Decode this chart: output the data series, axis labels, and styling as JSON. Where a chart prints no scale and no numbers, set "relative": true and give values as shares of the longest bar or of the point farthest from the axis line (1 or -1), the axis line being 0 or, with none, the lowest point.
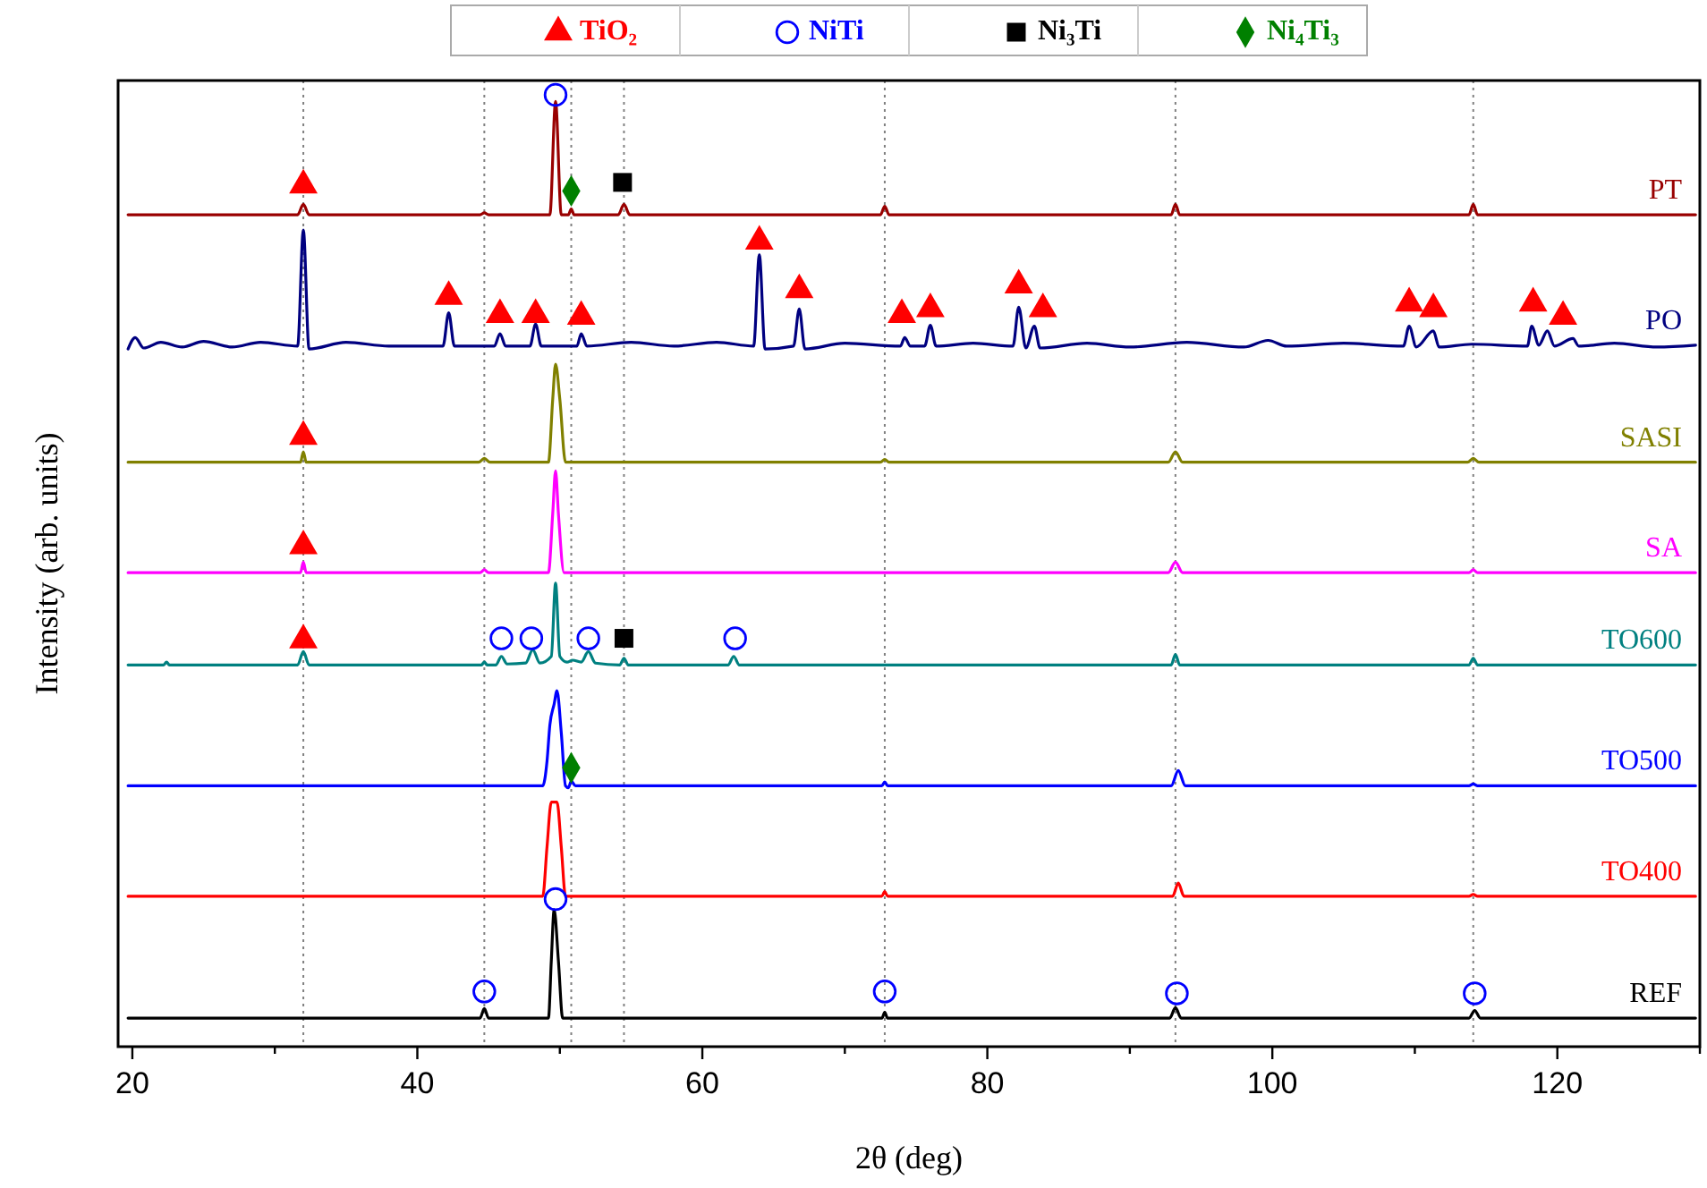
{
  "chart_data": {
    "type": "line",
    "relative": true,
    "xlabel": "2θ (deg)",
    "ylabel": "Intensity (arb. units)",
    "xlim": [
      19,
      130
    ],
    "xticks": [
      20,
      {
        "value": 30,
        "label": null
      },
      40,
      {
        "value": 50,
        "label": null
      },
      60,
      {
        "value": 70,
        "label": null
      },
      80,
      {
        "value": 90,
        "label": null
      },
      100,
      {
        "value": 110,
        "label": null
      },
      120,
      {
        "value": 130,
        "label": null
      }
    ],
    "grid": false,
    "legend": "top",
    "line_style": "solid",
    "ref_lines": [
      {
        "axis": "x",
        "value": 32.0,
        "color": "#808080",
        "line_style": "dotted"
      },
      {
        "axis": "x",
        "value": 44.7,
        "color": "#808080",
        "line_style": "dotted"
      },
      {
        "axis": "x",
        "value": 50.8,
        "color": "#808080",
        "line_style": "dotted"
      },
      {
        "axis": "x",
        "value": 54.5,
        "color": "#808080",
        "line_style": "dotted"
      },
      {
        "axis": "x",
        "value": 72.8,
        "color": "#808080",
        "line_style": "dotted"
      },
      {
        "axis": "x",
        "value": 93.2,
        "color": "#808080",
        "line_style": "dotted"
      },
      {
        "axis": "x",
        "value": 114.1,
        "color": "#808080",
        "line_style": "dotted"
      }
    ],
    "series": [
      {
        "name": "PT",
        "color": "#990000",
        "x": [
          19.7,
          31.6,
          32.0,
          32.4,
          44.4,
          44.7,
          45.0,
          49.3,
          49.7,
          50.1,
          50.6,
          50.8,
          51.0,
          54.1,
          54.5,
          54.9,
          72.5,
          72.8,
          73.1,
          92.9,
          93.2,
          93.5,
          113.8,
          114.1,
          114.4,
          129.7
        ],
        "values": [
          0.874,
          0.874,
          0.885,
          0.874,
          0.874,
          0.876,
          0.874,
          0.874,
          0.993,
          0.874,
          0.874,
          0.88,
          0.874,
          0.874,
          0.885,
          0.874,
          0.874,
          0.883,
          0.874,
          0.874,
          0.885,
          0.874,
          0.874,
          0.885,
          0.874,
          0.874
        ]
      },
      {
        "name": "PO",
        "color": "#000080",
        "x": [
          19.7,
          20.2,
          20.8,
          22.0,
          23.5,
          25,
          27,
          29,
          31.6,
          32.0,
          32.4,
          35,
          38,
          41.8,
          42.2,
          42.6,
          45.4,
          45.8,
          46.2,
          47.9,
          48.3,
          48.7,
          51.2,
          51.5,
          51.9,
          55,
          58,
          61,
          63.6,
          64.0,
          64.4,
          66.4,
          66.8,
          67.2,
          70,
          73.9,
          74.2,
          74.6,
          75.6,
          76.0,
          76.4,
          79,
          81.8,
          82.2,
          82.7,
          83.3,
          83.7,
          87,
          90,
          94,
          98,
          99.7,
          101,
          105,
          109.2,
          109.6,
          110.1,
          111.3,
          111.7,
          114,
          117.9,
          118.2,
          118.7,
          119.3,
          119.8,
          121.1,
          121.5,
          124,
          127,
          129.7
        ],
        "values": [
          0.733,
          0.745,
          0.734,
          0.74,
          0.735,
          0.741,
          0.735,
          0.74,
          0.736,
          0.858,
          0.733,
          0.74,
          0.736,
          0.736,
          0.771,
          0.736,
          0.736,
          0.749,
          0.736,
          0.736,
          0.759,
          0.736,
          0.736,
          0.749,
          0.736,
          0.74,
          0.736,
          0.74,
          0.736,
          0.832,
          0.733,
          0.736,
          0.775,
          0.733,
          0.739,
          0.736,
          0.745,
          0.736,
          0.736,
          0.758,
          0.736,
          0.739,
          0.736,
          0.777,
          0.734,
          0.757,
          0.734,
          0.739,
          0.735,
          0.74,
          0.735,
          0.742,
          0.736,
          0.739,
          0.736,
          0.757,
          0.735,
          0.752,
          0.735,
          0.738,
          0.736,
          0.757,
          0.737,
          0.752,
          0.736,
          0.744,
          0.736,
          0.739,
          0.735,
          0.737
        ]
      },
      {
        "name": "SASI",
        "color": "#808000",
        "x": [
          19.7,
          31.8,
          32.0,
          32.2,
          44.3,
          44.7,
          45.1,
          49.2,
          49.5,
          49.7,
          50.0,
          50.4,
          72.5,
          72.8,
          73.1,
          92.7,
          93.2,
          93.7,
          113.7,
          114.1,
          114.5,
          129.7
        ],
        "values": [
          0.614,
          0.614,
          0.625,
          0.614,
          0.614,
          0.618,
          0.614,
          0.614,
          0.68,
          0.717,
          0.68,
          0.614,
          0.614,
          0.617,
          0.614,
          0.614,
          0.625,
          0.614,
          0.614,
          0.618,
          0.614,
          0.614
        ]
      },
      {
        "name": "SA",
        "color": "#ff00ff",
        "x": [
          19.7,
          31.8,
          32.0,
          32.2,
          44.4,
          44.7,
          45.0,
          49.2,
          49.5,
          49.7,
          49.9,
          50.3,
          92.7,
          93.2,
          93.7,
          113.8,
          114.1,
          114.4,
          129.7
        ],
        "values": [
          0.498,
          0.498,
          0.509,
          0.498,
          0.498,
          0.501,
          0.498,
          0.498,
          0.56,
          0.605,
          0.56,
          0.498,
          0.498,
          0.509,
          0.498,
          0.498,
          0.501,
          0.498,
          0.498
        ]
      },
      {
        "name": "TO600",
        "color": "#008080",
        "x": [
          19.7,
          22.2,
          22.4,
          22.6,
          31.6,
          32.0,
          32.4,
          44.5,
          44.7,
          44.9,
          45.5,
          45.9,
          46.3,
          47.6,
          48.1,
          48.6,
          49.4,
          49.7,
          50.0,
          50.5,
          50.9,
          51.5,
          52.0,
          52.5,
          54.2,
          54.5,
          54.8,
          61.8,
          62.2,
          62.6,
          92.9,
          93.2,
          93.5,
          113.8,
          114.1,
          114.4,
          129.7
        ],
        "values": [
          0.401,
          0.401,
          0.404,
          0.401,
          0.401,
          0.415,
          0.401,
          0.401,
          0.404,
          0.401,
          0.401,
          0.41,
          0.402,
          0.403,
          0.417,
          0.403,
          0.41,
          0.487,
          0.41,
          0.404,
          0.406,
          0.404,
          0.415,
          0.403,
          0.401,
          0.408,
          0.401,
          0.401,
          0.41,
          0.401,
          0.401,
          0.412,
          0.401,
          0.401,
          0.408,
          0.401,
          0.401
        ]
      },
      {
        "name": "TO500",
        "color": "#0000ff",
        "x": [
          19.7,
          48.8,
          49.1,
          49.3,
          49.6,
          49.8,
          50.1,
          50.4,
          50.6,
          50.8,
          51.1,
          72.6,
          72.8,
          73.0,
          92.9,
          93.4,
          93.9,
          113.8,
          114.1,
          114.4,
          129.7
        ],
        "values": [
          0.274,
          0.274,
          0.3,
          0.338,
          0.36,
          0.374,
          0.33,
          0.274,
          0.272,
          0.279,
          0.274,
          0.274,
          0.278,
          0.274,
          0.274,
          0.29,
          0.274,
          0.274,
          0.276,
          0.274,
          0.274
        ]
      },
      {
        "name": "TO400",
        "color": "#ff0000",
        "x": [
          19.7,
          48.8,
          49.1,
          49.4,
          49.8,
          50.1,
          50.4,
          72.6,
          72.8,
          73.0,
          93.0,
          93.4,
          93.8,
          113.8,
          114.1,
          114.4,
          129.7
        ],
        "values": [
          0.158,
          0.158,
          0.21,
          0.257,
          0.257,
          0.21,
          0.158,
          0.158,
          0.163,
          0.158,
          0.158,
          0.172,
          0.158,
          0.158,
          0.16,
          0.158,
          0.158
        ]
      },
      {
        "name": "REF",
        "color": "#000000",
        "x": [
          19.7,
          44.4,
          44.7,
          45.0,
          49.2,
          49.4,
          49.6,
          49.9,
          50.2,
          72.6,
          72.8,
          73.0,
          92.8,
          93.2,
          93.6,
          113.8,
          114.2,
          114.6,
          129.7
        ],
        "values": [
          0.03,
          0.03,
          0.04,
          0.03,
          0.03,
          0.09,
          0.144,
          0.09,
          0.03,
          0.03,
          0.036,
          0.03,
          0.03,
          0.041,
          0.03,
          0.03,
          0.038,
          0.03,
          0.03
        ]
      },
      {
        "type": "scatter",
        "name": "TiO₂",
        "color": "#ff0000",
        "marker": "triangle",
        "x": [
          32.0,
          42.2,
          45.8,
          48.3,
          51.5,
          64.0,
          66.8,
          74.0,
          76.0,
          82.2,
          83.9,
          109.6,
          111.3,
          118.3,
          120.4,
          32.0,
          32.0,
          32.0
        ],
        "values": [
          0.905,
          0.788,
          0.769,
          0.769,
          0.767,
          0.846,
          0.795,
          0.769,
          0.775,
          0.8,
          0.775,
          0.781,
          0.775,
          0.781,
          0.767,
          0.641,
          0.526,
          0.427
        ]
      },
      {
        "type": "scatter",
        "name": "NiTi",
        "color": "#0000ff",
        "marker": "circle",
        "x": [
          49.7,
          45.9,
          48.0,
          52.0,
          62.3,
          44.7,
          49.7,
          72.8,
          93.3,
          114.2
        ],
        "values": [
          1.0,
          0.429,
          0.429,
          0.429,
          0.429,
          0.058,
          0.155,
          0.058,
          0.056,
          0.056
        ]
      },
      {
        "type": "scatter",
        "name": "Ni₃Ti",
        "color": "#000000",
        "marker": "square",
        "x": [
          54.4,
          54.5
        ],
        "values": [
          0.908,
          0.429
        ]
      },
      {
        "type": "scatter",
        "name": "Ni₄Ti₃",
        "color": "#008000",
        "marker": "diamond",
        "x": [
          50.8,
          50.8
        ],
        "values": [
          0.899,
          0.293
        ]
      }
    ]
  }
}
